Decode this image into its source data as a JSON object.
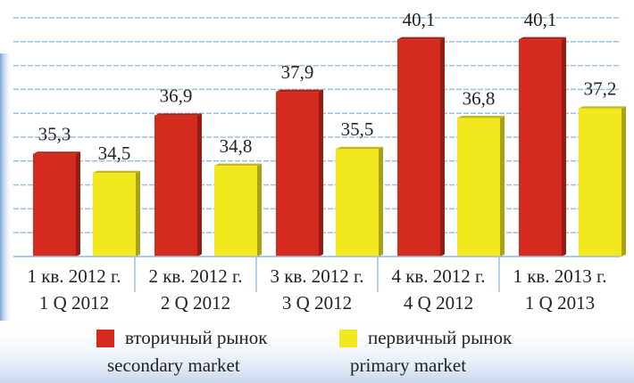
{
  "chart_data": {
    "type": "bar",
    "categories": [
      [
        "1 кв. 2012 г.",
        "1 Q 2012"
      ],
      [
        "2 кв. 2012 г.",
        "2 Q 2012"
      ],
      [
        "3 кв. 2012 г.",
        "3 Q 2012"
      ],
      [
        "4 кв. 2012 г.",
        "4 Q 2012"
      ],
      [
        "1 кв. 2013 г.",
        "1 Q 2013"
      ]
    ],
    "series": [
      {
        "name": [
          "вторичный рынок",
          "secondary market"
        ],
        "color": "#d42b1e",
        "values": [
          35.3,
          36.9,
          37.9,
          40.1,
          40.1
        ],
        "value_labels": [
          "35,3",
          "36,9",
          "37,9",
          "40,1",
          "40,1"
        ]
      },
      {
        "name": [
          "первичный рынок",
          "primary market"
        ],
        "color": "#f2e81e",
        "values": [
          34.5,
          34.8,
          35.5,
          36.8,
          37.2
        ],
        "value_labels": [
          "34,5",
          "34,8",
          "35,5",
          "36,8",
          "37,2"
        ]
      }
    ],
    "ylim": [
      31,
      41
    ],
    "yticks": [
      31,
      32,
      33,
      34,
      35,
      36,
      37,
      38,
      39,
      40,
      41
    ],
    "grid": true,
    "legend": "bottom"
  }
}
